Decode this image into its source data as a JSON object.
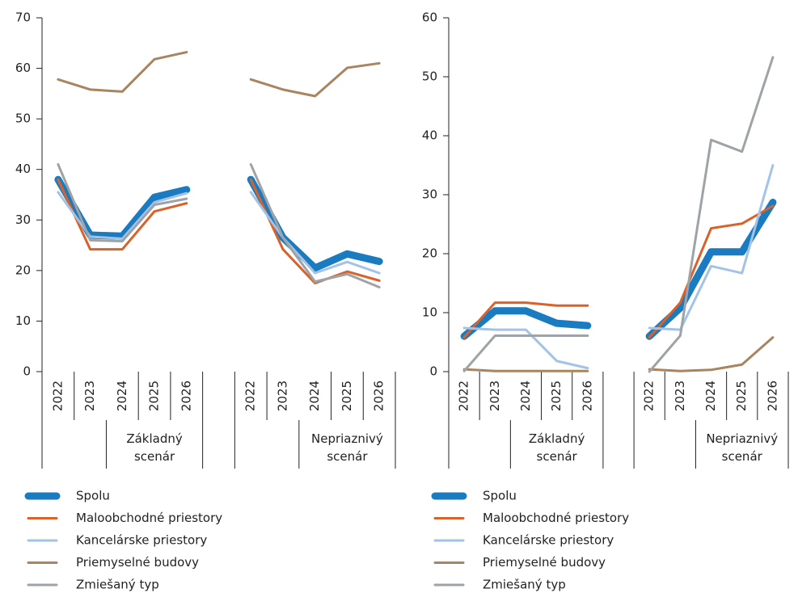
{
  "chart_data": [
    {
      "type": "line",
      "categories": [
        "2022",
        "2023",
        "2024",
        "2025",
        "2026",
        null,
        "2022",
        "2023",
        "2024",
        "2025",
        "2026"
      ],
      "group_labels": [
        "Základný scenár",
        "Nepriaznivý scenár"
      ],
      "ylim": [
        0,
        70
      ],
      "yticks": [
        0,
        10,
        20,
        30,
        40,
        50,
        60,
        70
      ],
      "series": [
        {
          "name": "Spolu",
          "color": "#1b7bc0",
          "values": [
            38,
            27,
            26.8,
            34.5,
            36,
            null,
            38,
            26.5,
            20.5,
            23.3,
            21.8
          ]
        },
        {
          "name": "Maloobchodné priestory",
          "color": "#d9622b",
          "values": [
            38,
            24.2,
            24.2,
            31.7,
            33.3,
            null,
            38,
            24.2,
            17.5,
            19.8,
            18
          ]
        },
        {
          "name": "Kancelárske priestory",
          "color": "#a3c3e6",
          "values": [
            35.5,
            26.7,
            26.3,
            33.5,
            35.3,
            null,
            35.5,
            26.5,
            19.5,
            21.7,
            19.5
          ]
        },
        {
          "name": "Priemyselné budovy",
          "color": "#a9855f",
          "values": [
            57.8,
            55.8,
            55.4,
            61.8,
            63.2,
            null,
            57.8,
            55.8,
            54.5,
            60.1,
            61
          ]
        },
        {
          "name": "Zmiešaný typ",
          "color": "#9ea3a7",
          "values": [
            41,
            26,
            25.8,
            33,
            34.2,
            null,
            41,
            26.5,
            17.8,
            19.3,
            16.7
          ]
        }
      ]
    },
    {
      "type": "line",
      "categories": [
        "2022",
        "2023",
        "2024",
        "2025",
        "2026",
        null,
        "2022",
        "2023",
        "2024",
        "2025",
        "2026"
      ],
      "group_labels": [
        "Základný scenár",
        "Nepriaznivý scenár"
      ],
      "ylim": [
        0,
        60
      ],
      "yticks": [
        0,
        10,
        20,
        30,
        40,
        50,
        60
      ],
      "series": [
        {
          "name": "Spolu",
          "color": "#1b7bc0",
          "values": [
            6,
            10.3,
            10.3,
            8.2,
            7.8,
            null,
            6,
            10.8,
            20.3,
            20.3,
            28.7
          ]
        },
        {
          "name": "Maloobchodné priestory",
          "color": "#d9622b",
          "values": [
            5.8,
            11.7,
            11.7,
            11.2,
            11.2,
            null,
            5.8,
            11.7,
            24.3,
            25.1,
            28.1
          ]
        },
        {
          "name": "Kancelárske priestory",
          "color": "#a3c3e6",
          "values": [
            7.4,
            7.1,
            7.1,
            1.8,
            0.6,
            null,
            7.4,
            7.1,
            17.9,
            16.7,
            35
          ]
        },
        {
          "name": "Priemyselné budovy",
          "color": "#a9855f",
          "values": [
            0.4,
            0.1,
            0.1,
            0.1,
            0.1,
            null,
            0.4,
            0.1,
            0.3,
            1.2,
            5.8
          ]
        },
        {
          "name": "Zmiešaný typ",
          "color": "#9ea3a7",
          "values": [
            0.1,
            6.1,
            6.1,
            6.1,
            6.1,
            null,
            0,
            6.1,
            39.3,
            37.3,
            53.3
          ]
        }
      ]
    }
  ]
}
